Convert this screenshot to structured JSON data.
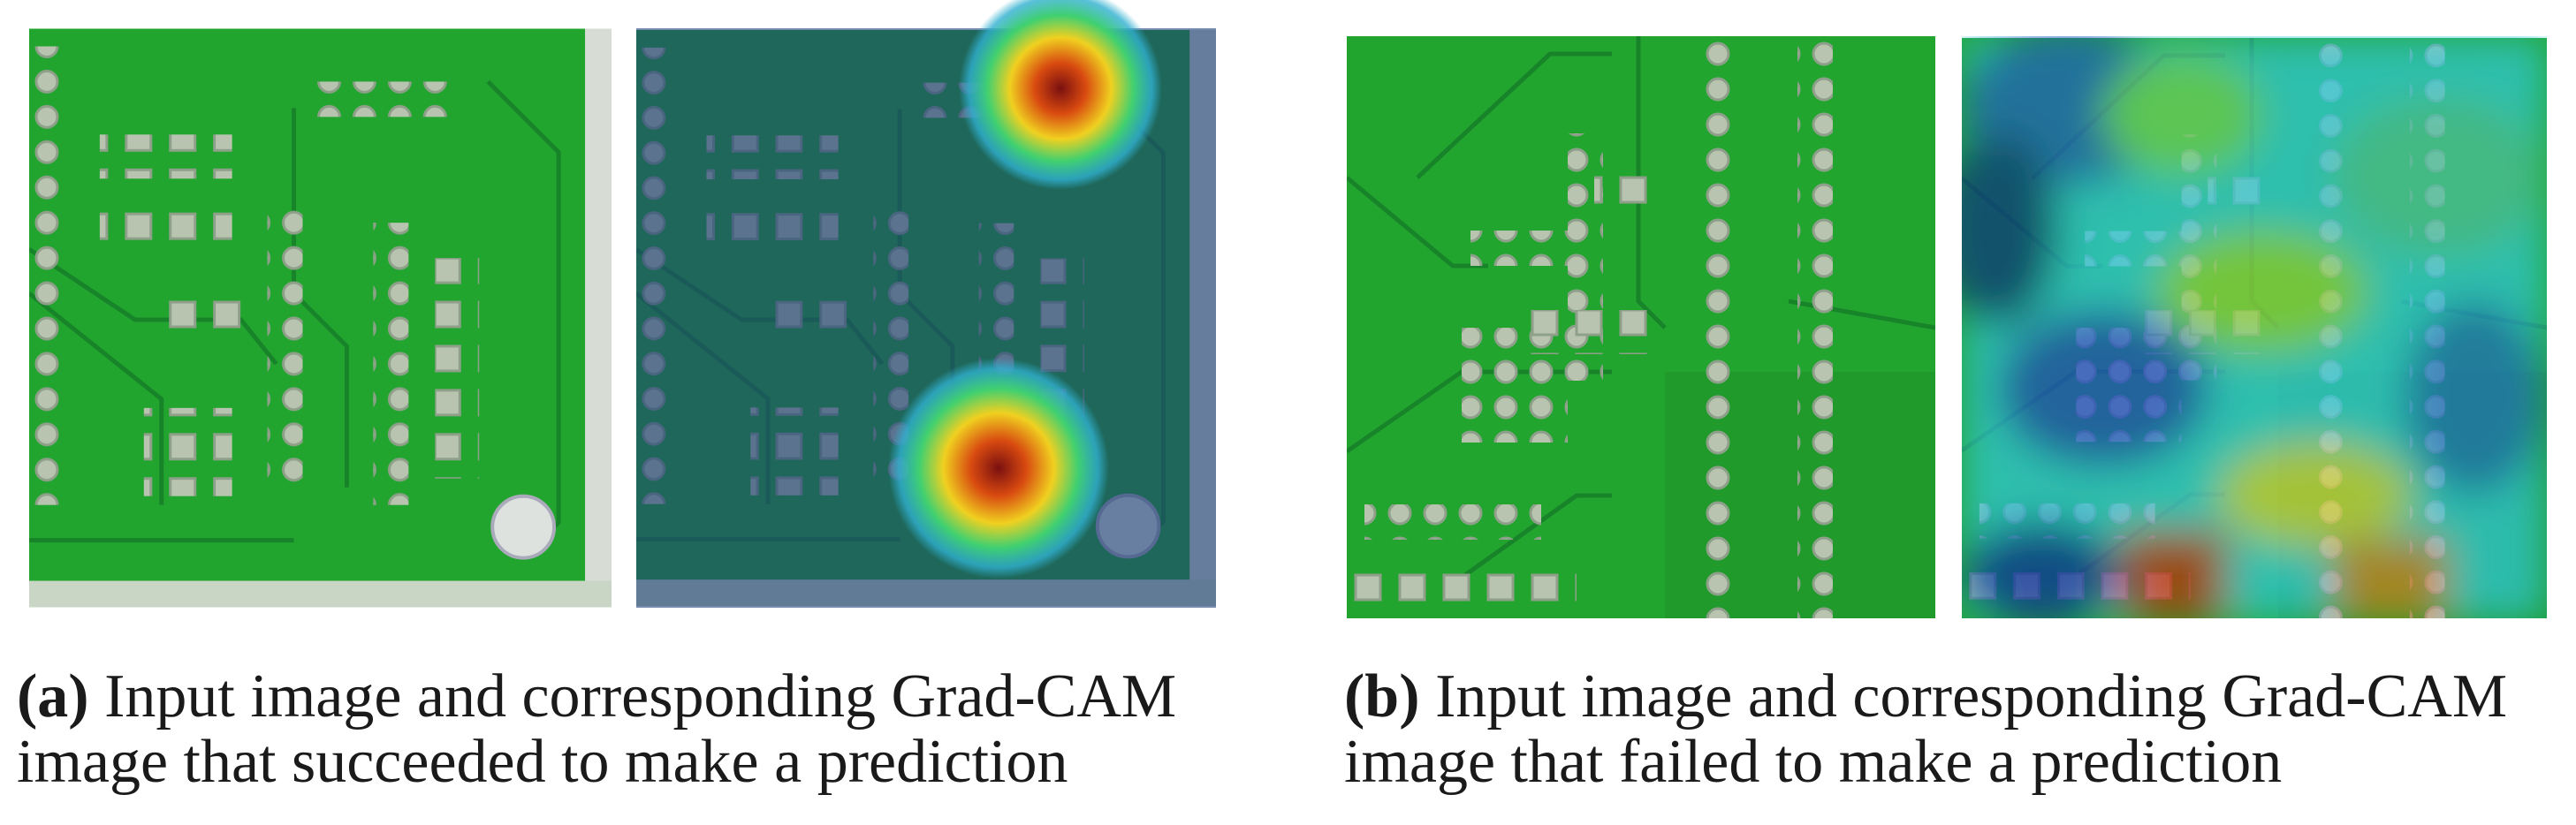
{
  "subfigures": [
    {
      "label": "(a)",
      "caption": [
        "Input image and corresponding Grad-CAM",
        "image that succeeded to make a prediction"
      ]
    },
    {
      "label": "(b)",
      "caption": [
        "Input image and corresponding Grad-CAM",
        "image that failed to make a prediction"
      ]
    }
  ]
}
